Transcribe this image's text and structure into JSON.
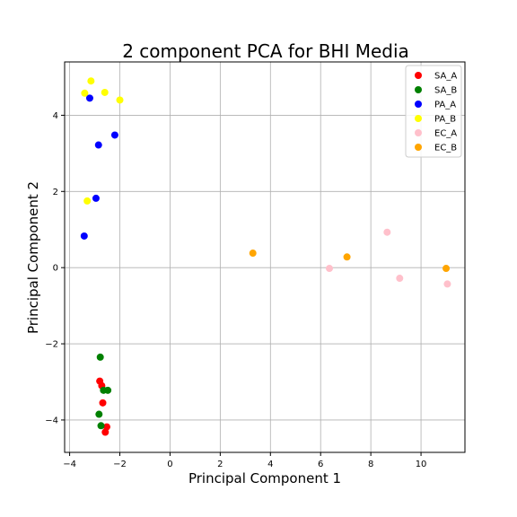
{
  "chart_data": {
    "type": "scatter",
    "title": "2 component PCA for BHI Media",
    "xlabel": "Principal Component 1",
    "ylabel": "Principal Component 2",
    "xlim": [
      -4.2,
      11.75
    ],
    "ylim": [
      -4.85,
      5.4
    ],
    "xticks": [
      -4,
      -2,
      0,
      2,
      4,
      6,
      8,
      10
    ],
    "yticks": [
      -4,
      -2,
      0,
      2,
      4
    ],
    "grid": true,
    "legend_position": "top-right",
    "series": [
      {
        "name": "SA_A",
        "color": "#ff0000",
        "points": [
          [
            -2.8,
            -2.98
          ],
          [
            -2.72,
            -3.1
          ],
          [
            -2.68,
            -3.55
          ],
          [
            -2.52,
            -4.18
          ],
          [
            -2.58,
            -4.32
          ]
        ]
      },
      {
        "name": "SA_B",
        "color": "#008000",
        "points": [
          [
            -2.78,
            -2.35
          ],
          [
            -2.65,
            -3.22
          ],
          [
            -2.48,
            -3.22
          ],
          [
            -2.83,
            -3.85
          ],
          [
            -2.75,
            -4.15
          ]
        ]
      },
      {
        "name": "PA_A",
        "color": "#0000ff",
        "points": [
          [
            -3.2,
            4.45
          ],
          [
            -2.2,
            3.48
          ],
          [
            -2.85,
            3.22
          ],
          [
            -2.95,
            1.82
          ],
          [
            -3.42,
            0.83
          ]
        ]
      },
      {
        "name": "PA_B",
        "color": "#ffff00",
        "points": [
          [
            -3.15,
            4.9
          ],
          [
            -3.4,
            4.58
          ],
          [
            -2.6,
            4.6
          ],
          [
            -2.0,
            4.4
          ],
          [
            -3.3,
            1.75
          ]
        ]
      },
      {
        "name": "EC_A",
        "color": "#ffc0cb",
        "points": [
          [
            8.65,
            0.93
          ],
          [
            6.35,
            -0.02
          ],
          [
            9.15,
            -0.28
          ],
          [
            11.05,
            -0.43
          ]
        ]
      },
      {
        "name": "EC_B",
        "color": "#ffa500",
        "points": [
          [
            3.3,
            0.38
          ],
          [
            7.05,
            0.28
          ],
          [
            11.0,
            -0.02
          ]
        ]
      }
    ]
  }
}
